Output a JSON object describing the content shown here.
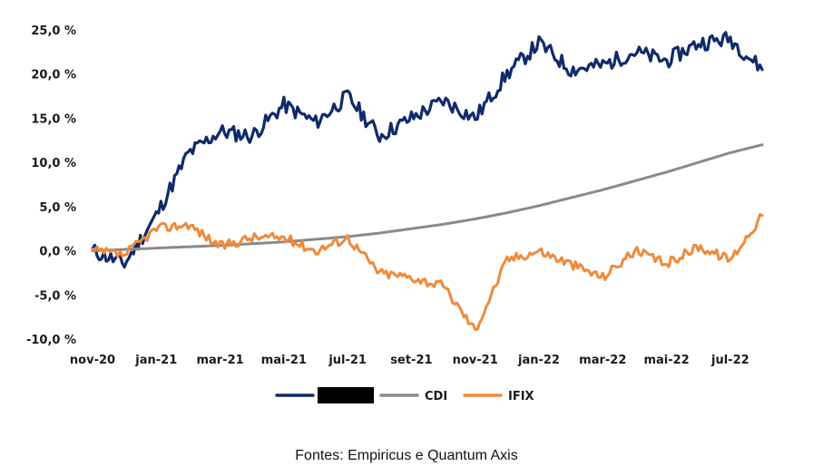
{
  "chart_data": {
    "type": "line",
    "x_ticks": [
      "nov-20",
      "jan-21",
      "mar-21",
      "mai-21",
      "jul-21",
      "set-21",
      "nov-21",
      "jan-22",
      "mar-22",
      "mai-22",
      "jul-22"
    ],
    "y_ticks": [
      "25,0 %",
      "20,0 %",
      "15,0 %",
      "10,0 %",
      "5,0 %",
      "0,0 %",
      "-5,0 %",
      "-10,0 %"
    ],
    "ylim": [
      -10,
      25
    ],
    "xlim": [
      "2020-11",
      "2022-08"
    ],
    "grid": false,
    "legend_position": "bottom-center",
    "series": [
      {
        "name": "",
        "color": "#102a6b",
        "legend_redacted": true,
        "x": [
          "2020-11",
          "2020-12",
          "2021-01",
          "2021-02",
          "2021-03",
          "2021-04",
          "2021-05",
          "2021-06",
          "2021-07",
          "2021-08",
          "2021-09",
          "2021-10",
          "2021-11",
          "2021-12",
          "2022-01",
          "2022-02",
          "2022-03",
          "2022-04",
          "2022-05",
          "2022-06",
          "2022-07",
          "2022-08"
        ],
        "values": [
          0,
          -1.5,
          4,
          11,
          13.5,
          13,
          16.5,
          14.5,
          17.5,
          13,
          15,
          17,
          15,
          20,
          23.5,
          20.5,
          21,
          22.5,
          21.5,
          23.5,
          24,
          20.5
        ]
      },
      {
        "name": "CDI",
        "color": "#8a8a8a",
        "x": [
          "2020-11",
          "2020-12",
          "2021-01",
          "2021-02",
          "2021-03",
          "2021-04",
          "2021-05",
          "2021-06",
          "2021-07",
          "2021-08",
          "2021-09",
          "2021-10",
          "2021-11",
          "2021-12",
          "2022-01",
          "2022-02",
          "2022-03",
          "2022-04",
          "2022-05",
          "2022-06",
          "2022-07",
          "2022-08"
        ],
        "values": [
          0,
          0.15,
          0.3,
          0.45,
          0.6,
          0.8,
          1.0,
          1.3,
          1.6,
          2.0,
          2.5,
          3.0,
          3.6,
          4.3,
          5.1,
          6.0,
          6.9,
          7.9,
          8.9,
          10.0,
          11.1,
          12.0
        ]
      },
      {
        "name": "IFIX",
        "color": "#ef8a3b",
        "x": [
          "2020-11",
          "2020-12",
          "2021-01",
          "2021-02",
          "2021-03",
          "2021-04",
          "2021-05",
          "2021-06",
          "2021-07",
          "2021-08",
          "2021-09",
          "2021-10",
          "2021-11",
          "2021-12",
          "2022-01",
          "2022-02",
          "2022-03",
          "2022-04",
          "2022-05",
          "2022-06",
          "2022-07",
          "2022-08"
        ],
        "values": [
          0,
          -0.5,
          2.5,
          3,
          0.5,
          1.5,
          1.5,
          0,
          1.5,
          -2.5,
          -3,
          -4,
          -9,
          -1,
          0,
          -1.5,
          -3,
          0,
          -1.5,
          0.5,
          -1,
          4
        ]
      }
    ],
    "legend_entries": [
      "",
      "CDI",
      "IFIX"
    ]
  },
  "source_note": "Fontes: Empiricus e Quantum Axis"
}
